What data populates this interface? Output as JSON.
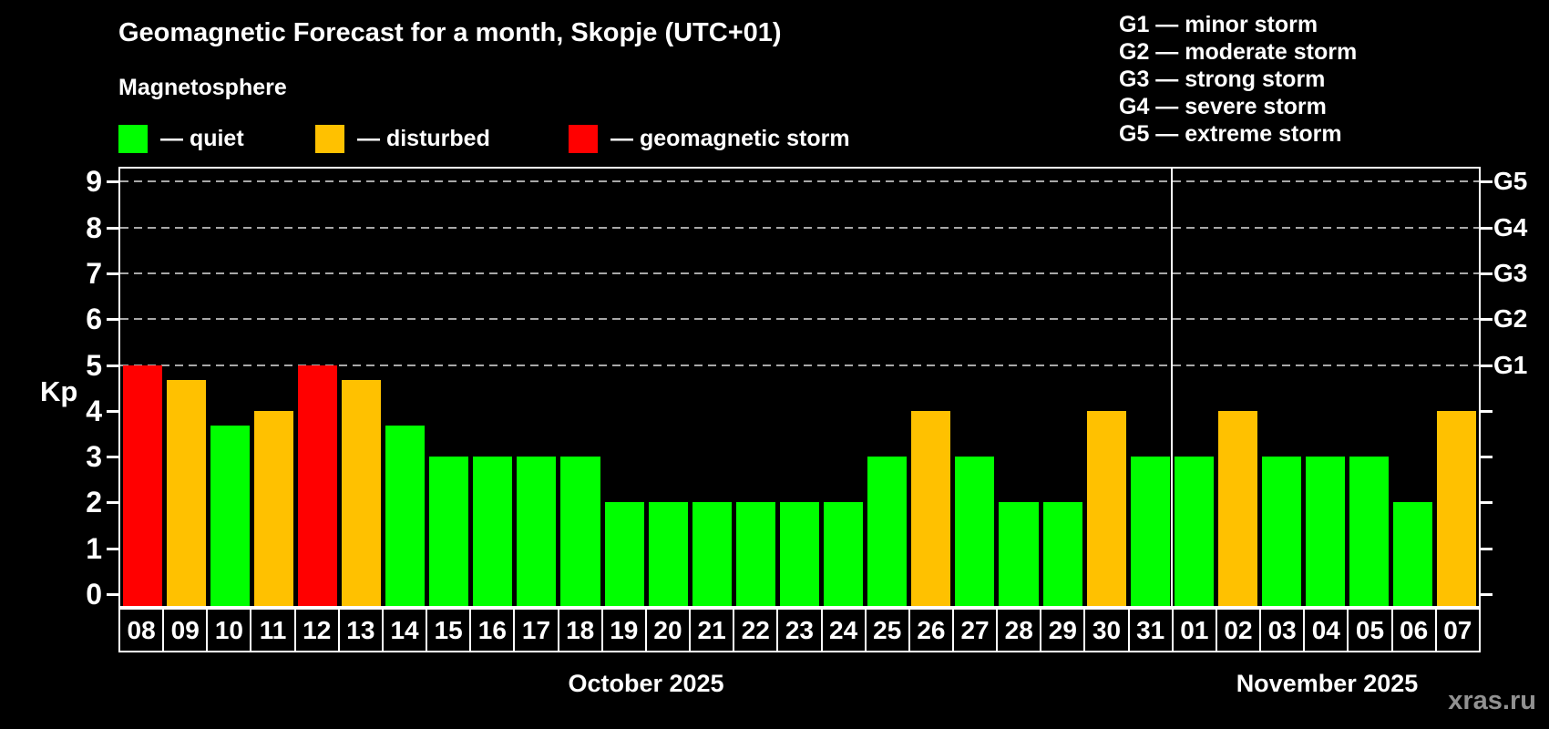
{
  "watermark": "xras.ru",
  "colors": {
    "quiet": "#00ff00",
    "disturbed": "#ffc100",
    "storm": "#ff0000",
    "background": "#000000",
    "text": "#ffffff",
    "gridline": "#a8a8a8"
  },
  "legend": {
    "items": [
      {
        "state": "quiet",
        "label": "— quiet"
      },
      {
        "state": "disturbed",
        "label": "— disturbed"
      },
      {
        "state": "storm",
        "label": "— geomagnetic storm"
      }
    ]
  },
  "g_legend": [
    "G1 — minor storm",
    "G2 — moderate storm",
    "G3 — strong storm",
    "G4 — severe storm",
    "G5 — extreme storm"
  ],
  "chart_data": {
    "type": "bar",
    "title": "Geomagnetic Forecast for a month, Skopje (UTC+01)",
    "subtitle": "Magnetosphere",
    "ylabel": "Kp",
    "ylim": [
      0,
      9.6
    ],
    "yticks": [
      0,
      1,
      2,
      3,
      4,
      5,
      6,
      7,
      8,
      9
    ],
    "gridlines_at": [
      5,
      6,
      7,
      8,
      9
    ],
    "right_axis_labels": {
      "5": "G1",
      "6": "G2",
      "7": "G3",
      "8": "G4",
      "9": "G5"
    },
    "legend_position": "top-left",
    "categories": [
      "08",
      "09",
      "10",
      "11",
      "12",
      "13",
      "14",
      "15",
      "16",
      "17",
      "18",
      "19",
      "20",
      "21",
      "22",
      "23",
      "24",
      "25",
      "26",
      "27",
      "28",
      "29",
      "30",
      "31",
      "01",
      "02",
      "03",
      "04",
      "05",
      "06",
      "07"
    ],
    "values": [
      5.0,
      4.67,
      3.67,
      4.0,
      5.0,
      4.67,
      3.67,
      3.0,
      3.0,
      3.0,
      3.0,
      2.0,
      2.0,
      2.0,
      2.0,
      2.0,
      2.0,
      3.0,
      4.0,
      3.0,
      2.0,
      2.0,
      4.0,
      3.0,
      3.0,
      4.0,
      3.0,
      3.0,
      3.0,
      2.0,
      4.0
    ],
    "states": [
      "storm",
      "disturbed",
      "quiet",
      "disturbed",
      "storm",
      "disturbed",
      "quiet",
      "quiet",
      "quiet",
      "quiet",
      "quiet",
      "quiet",
      "quiet",
      "quiet",
      "quiet",
      "quiet",
      "quiet",
      "quiet",
      "disturbed",
      "quiet",
      "quiet",
      "quiet",
      "disturbed",
      "quiet",
      "quiet",
      "disturbed",
      "quiet",
      "quiet",
      "quiet",
      "quiet",
      "disturbed"
    ],
    "month_labels": [
      {
        "text": "October 2025",
        "count": 24
      },
      {
        "text": "November 2025",
        "count": 7
      }
    ]
  }
}
